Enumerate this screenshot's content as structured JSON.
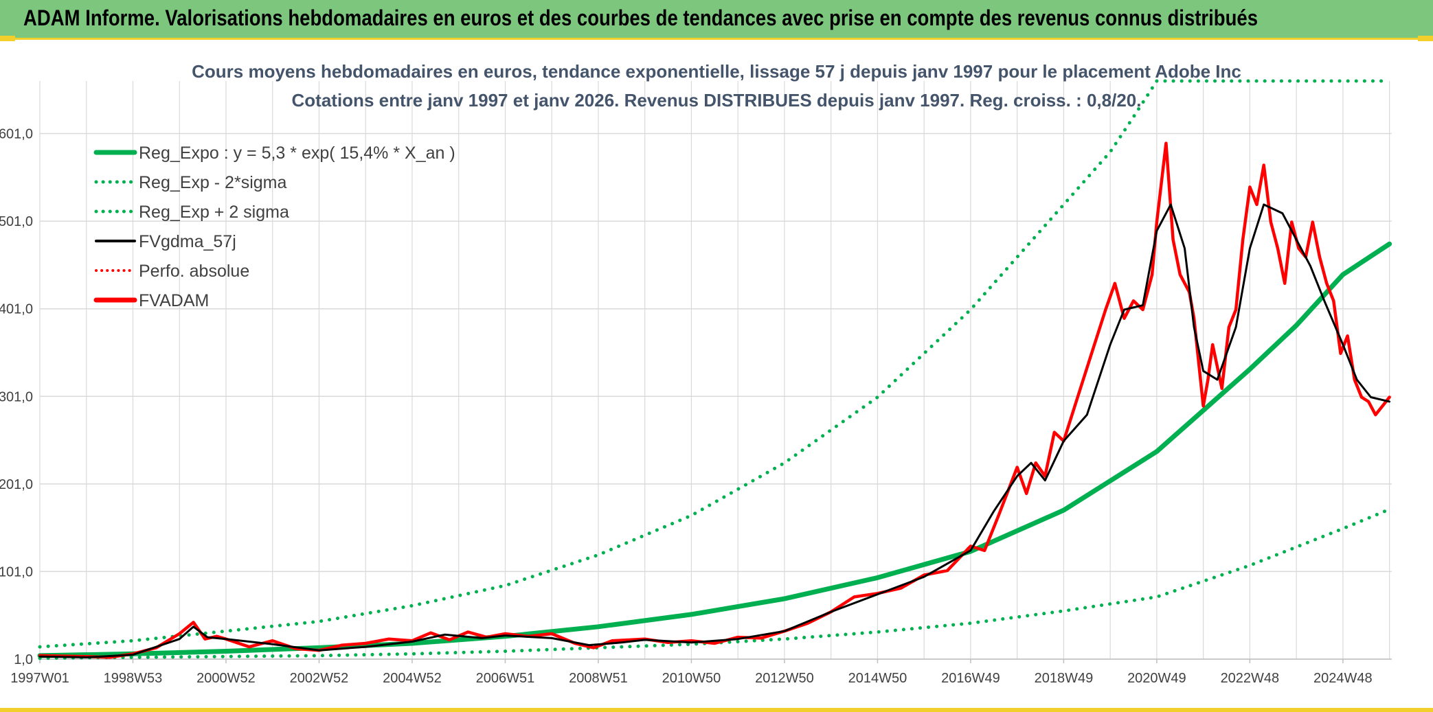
{
  "header": {
    "title": "ADAM Informe. Valorisations hebdomadaires en euros et des courbes de tendances avec prise en compte des revenus connus distribués"
  },
  "colors": {
    "banner": "#7dc67e",
    "accent": "#f2cf2a",
    "trend": "#00b050",
    "red": "#ff0000",
    "black": "#000000",
    "title": "#44546a"
  },
  "chart_data": {
    "type": "line",
    "title": "Cours moyens hebdomadaires en euros, tendance exponentielle, lissage 57 j depuis janv 1997 pour le placement Adobe Inc",
    "subtitle": "Cotations entre janv 1997 et janv 2026. Revenus DISTRIBUES depuis janv 1997. Reg. croiss. : 0,8/20.",
    "xlabel": "",
    "ylabel": "",
    "xlim": [
      1997.0,
      2026.05
    ],
    "ylim": [
      1,
      661
    ],
    "grid": true,
    "y_ticks": [
      1,
      101,
      201,
      301,
      401,
      501,
      601
    ],
    "y_tick_labels": [
      "1,0",
      "101,0",
      "201,0",
      "301,0",
      "401,0",
      "501,0",
      "601,0"
    ],
    "x_ticks": [
      1997.0,
      1999.0,
      2001.0,
      2003.0,
      2005.0,
      2007.0,
      2009.0,
      2011.0,
      2013.0,
      2015.0,
      2017.0,
      2019.0,
      2021.0,
      2023.0,
      2025.0
    ],
    "x_tick_labels": [
      "1997W01",
      "1998W53",
      "2000W52",
      "2002W52",
      "2004W52",
      "2006W51",
      "2008W51",
      "2010W50",
      "2012W50",
      "2014W50",
      "2016W49",
      "2018W49",
      "2020W49",
      "2022W48",
      "2024W48"
    ],
    "legend": {
      "placement": "top-left",
      "entries": [
        {
          "label": "Reg_Expo : y = 5,3 * exp( 15,4% *  X_an )",
          "color": "#00b050",
          "style": "solid-thick"
        },
        {
          "label": "Reg_Exp - 2*sigma",
          "color": "#00b050",
          "style": "dotted"
        },
        {
          "label": "Reg_Exp + 2 sigma",
          "color": "#00b050",
          "style": "dotted"
        },
        {
          "label": "FVgdma_57j",
          "color": "#000000",
          "style": "solid"
        },
        {
          "label": "Perfo. absolue",
          "color": "#ff0000",
          "style": "dotted"
        },
        {
          "label": "FVADAM",
          "color": "#ff0000",
          "style": "solid-thick"
        }
      ]
    },
    "series": [
      {
        "name": "Reg_Expo : y = 5,3 * exp( 15,4% *  X_an )",
        "x": [
          1997.0,
          1999.0,
          2001.0,
          2003.0,
          2005.0,
          2007.0,
          2009.0,
          2011.0,
          2013.0,
          2015.0,
          2017.0,
          2019.0,
          2021.0,
          2022.0,
          2023.0,
          2024.0,
          2025.0,
          2026.0
        ],
        "values": [
          5,
          7,
          10,
          14,
          19,
          27,
          38,
          52,
          70,
          94,
          124,
          171,
          238,
          285,
          332,
          382,
          440,
          475
        ]
      },
      {
        "name": "Reg_Exp - 2*sigma",
        "x": [
          1997.0,
          1999.0,
          2001.0,
          2003.0,
          2005.0,
          2007.0,
          2009.0,
          2011.0,
          2013.0,
          2015.0,
          2017.0,
          2019.0,
          2021.0,
          2023.0,
          2025.0,
          2026.0
        ],
        "values": [
          2,
          3,
          4,
          5,
          7,
          10,
          14,
          18,
          24,
          32,
          42,
          56,
          72,
          108,
          150,
          172
        ]
      },
      {
        "name": "Reg_Exp + 2 sigma",
        "x": [
          1997.0,
          1999.0,
          2001.0,
          2003.0,
          2005.0,
          2007.0,
          2009.0,
          2011.0,
          2013.0,
          2015.0,
          2017.0,
          2019.0,
          2020.0,
          2020.5,
          2021.0,
          2021.05,
          2026.0
        ],
        "values": [
          15,
          22,
          33,
          44,
          62,
          85,
          120,
          165,
          225,
          300,
          400,
          520,
          580,
          620,
          661,
          661,
          661
        ]
      },
      {
        "name": "FVgdma_57j",
        "x": [
          1997.0,
          1998.0,
          1999.0,
          2000.0,
          2000.3,
          2000.6,
          2001.0,
          2002.0,
          2003.0,
          2004.0,
          2005.0,
          2005.7,
          2006.5,
          2007.0,
          2008.0,
          2008.8,
          2009.5,
          2010.0,
          2011.0,
          2012.0,
          2013.0,
          2014.0,
          2015.0,
          2016.0,
          2016.5,
          2017.0,
          2017.5,
          2018.0,
          2018.3,
          2018.6,
          2019.0,
          2019.5,
          2020.0,
          2020.3,
          2020.7,
          2021.0,
          2021.3,
          2021.6,
          2021.8,
          2022.0,
          2022.3,
          2022.7,
          2023.0,
          2023.3,
          2023.7,
          2024.0,
          2024.3,
          2024.6,
          2025.0,
          2025.3,
          2025.6,
          2026.0
        ],
        "values": [
          4,
          3,
          6,
          24,
          38,
          26,
          24,
          18,
          11,
          15,
          21,
          29,
          25,
          28,
          25,
          17,
          20,
          23,
          20,
          24,
          33,
          55,
          75,
          95,
          110,
          125,
          170,
          210,
          225,
          205,
          250,
          280,
          360,
          400,
          405,
          490,
          520,
          470,
          380,
          330,
          320,
          380,
          470,
          520,
          510,
          480,
          450,
          410,
          360,
          320,
          300,
          295
        ]
      },
      {
        "name": "FVADAM",
        "x": [
          1997.0,
          1998.0,
          1998.5,
          1999.0,
          1999.5,
          2000.0,
          2000.3,
          2000.55,
          2000.8,
          2001.0,
          2001.5,
          2002.0,
          2002.5,
          2003.0,
          2003.5,
          2004.0,
          2004.5,
          2005.0,
          2005.4,
          2005.8,
          2006.2,
          2006.6,
          2007.0,
          2007.5,
          2008.0,
          2008.5,
          2008.9,
          2009.3,
          2010.0,
          2010.5,
          2011.0,
          2011.5,
          2012.0,
          2012.5,
          2013.0,
          2013.5,
          2014.0,
          2014.5,
          2015.0,
          2015.5,
          2016.0,
          2016.5,
          2017.0,
          2017.3,
          2017.6,
          2018.0,
          2018.2,
          2018.4,
          2018.6,
          2018.8,
          2019.0,
          2019.3,
          2019.6,
          2019.9,
          2020.1,
          2020.3,
          2020.5,
          2020.7,
          2020.9,
          2021.0,
          2021.2,
          2021.35,
          2021.5,
          2021.7,
          2021.8,
          2022.0,
          2022.1,
          2022.2,
          2022.4,
          2022.55,
          2022.7,
          2022.85,
          2023.0,
          2023.15,
          2023.3,
          2023.45,
          2023.6,
          2023.75,
          2023.9,
          2024.05,
          2024.2,
          2024.35,
          2024.5,
          2024.65,
          2024.8,
          2024.95,
          2025.1,
          2025.25,
          2025.4,
          2025.55,
          2025.7,
          2025.85,
          2026.0
        ],
        "values": [
          5,
          4,
          3,
          7,
          14,
          30,
          43,
          24,
          27,
          24,
          15,
          22,
          13,
          11,
          17,
          19,
          24,
          22,
          31,
          23,
          32,
          26,
          30,
          27,
          30,
          19,
          14,
          22,
          24,
          20,
          22,
          19,
          26,
          25,
          33,
          42,
          55,
          72,
          76,
          82,
          97,
          102,
          130,
          125,
          165,
          220,
          190,
          225,
          210,
          260,
          250,
          300,
          350,
          400,
          430,
          390,
          410,
          400,
          440,
          500,
          590,
          480,
          440,
          420,
          390,
          290,
          320,
          360,
          310,
          380,
          400,
          480,
          540,
          520,
          565,
          500,
          470,
          430,
          500,
          470,
          460,
          500,
          460,
          430,
          410,
          350,
          370,
          320,
          300,
          295,
          280,
          290,
          300
        ]
      }
    ]
  }
}
